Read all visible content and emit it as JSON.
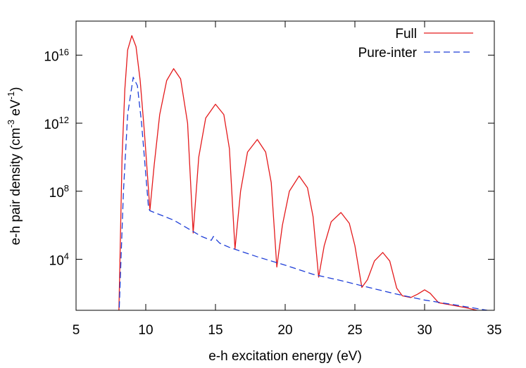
{
  "chart_data": {
    "type": "line",
    "xlabel": "e-h excitation energy (eV)",
    "ylabel": "e-h pair density (cm^-3 eV^-1)",
    "xlim": [
      5,
      35
    ],
    "xticks": [
      5,
      10,
      15,
      20,
      25,
      30,
      35
    ],
    "ylim": [
      10,
      1e+18
    ],
    "log_y": true,
    "yticks": [
      {
        "value": 10000,
        "label": "10^4"
      },
      {
        "value": 100000000,
        "label": "10^8"
      },
      {
        "value": 1000000000000,
        "label": "10^12"
      },
      {
        "value": 10000000000000000,
        "label": "10^16"
      }
    ],
    "legend": "top right",
    "series": [
      {
        "name": "Full",
        "color": "#e41a1c",
        "style": "solid",
        "x": [
          8.05,
          8.3,
          8.5,
          8.7,
          9.0,
          9.3,
          9.6,
          9.9,
          10.3,
          10.6,
          11,
          11.5,
          12,
          12.5,
          13,
          13.4,
          13.8,
          14.3,
          15,
          15.6,
          16,
          16.4,
          16.8,
          17.3,
          18,
          18.6,
          19,
          19.4,
          19.8,
          20.3,
          21,
          21.6,
          22,
          22.4,
          22.8,
          23.3,
          24,
          24.6,
          25,
          25.5,
          25.9,
          26.4,
          27,
          27.5,
          28,
          28.4,
          29,
          29.5,
          30,
          30.4,
          31,
          32,
          33,
          34,
          34.5
        ],
        "values": [
          1,
          10000000000.0,
          100000000000000.0,
          2e+16,
          1.4e+17,
          3.2e+16,
          320000000000000.0,
          320000000000.0,
          7900000.0,
          3200000000.0,
          3200000000000.0,
          320000000000000.0,
          1600000000000000.0,
          400000000000000.0,
          1000000000000.0,
          350000.0,
          10000000000.0,
          2000000000000.0,
          13000000000000.0,
          3200000000000.0,
          32000000000.0,
          40000.0,
          100000000.0,
          20000000000.0,
          110000000000.0,
          20000000000.0,
          320000000.0,
          3500,
          1000000.0,
          100000000.0,
          790000000.0,
          160000000.0,
          3200000.0,
          890,
          63000.0,
          1600000.0,
          5600000.0,
          1300000.0,
          63000.0,
          220,
          630,
          7900,
          25000.0,
          7900,
          200,
          71,
          56,
          89,
          160,
          100,
          28,
          20,
          14,
          9,
          7
        ]
      },
      {
        "name": "Pure-inter",
        "color": "#1f3fd8",
        "style": "dashed",
        "x": [
          8.05,
          8.4,
          8.7,
          9.1,
          9.4,
          9.7,
          10,
          10.2,
          10.3,
          12,
          14,
          14.7,
          14.85,
          15,
          15.3,
          16,
          18,
          20,
          22,
          24,
          26,
          28,
          30,
          32,
          34.5
        ],
        "values": [
          1,
          100000000.0,
          3200000000000.0,
          500000000000000.0,
          160000000000000.0,
          1000000000000.0,
          1000000000.0,
          10000000.0,
          7100000.0,
          2000000.0,
          220000.0,
          130000.0,
          220000.0,
          160000.0,
          89000.0,
          50000.0,
          14000.0,
          4500,
          1300,
          560,
          220,
          89,
          40,
          22,
          10
        ]
      }
    ]
  }
}
